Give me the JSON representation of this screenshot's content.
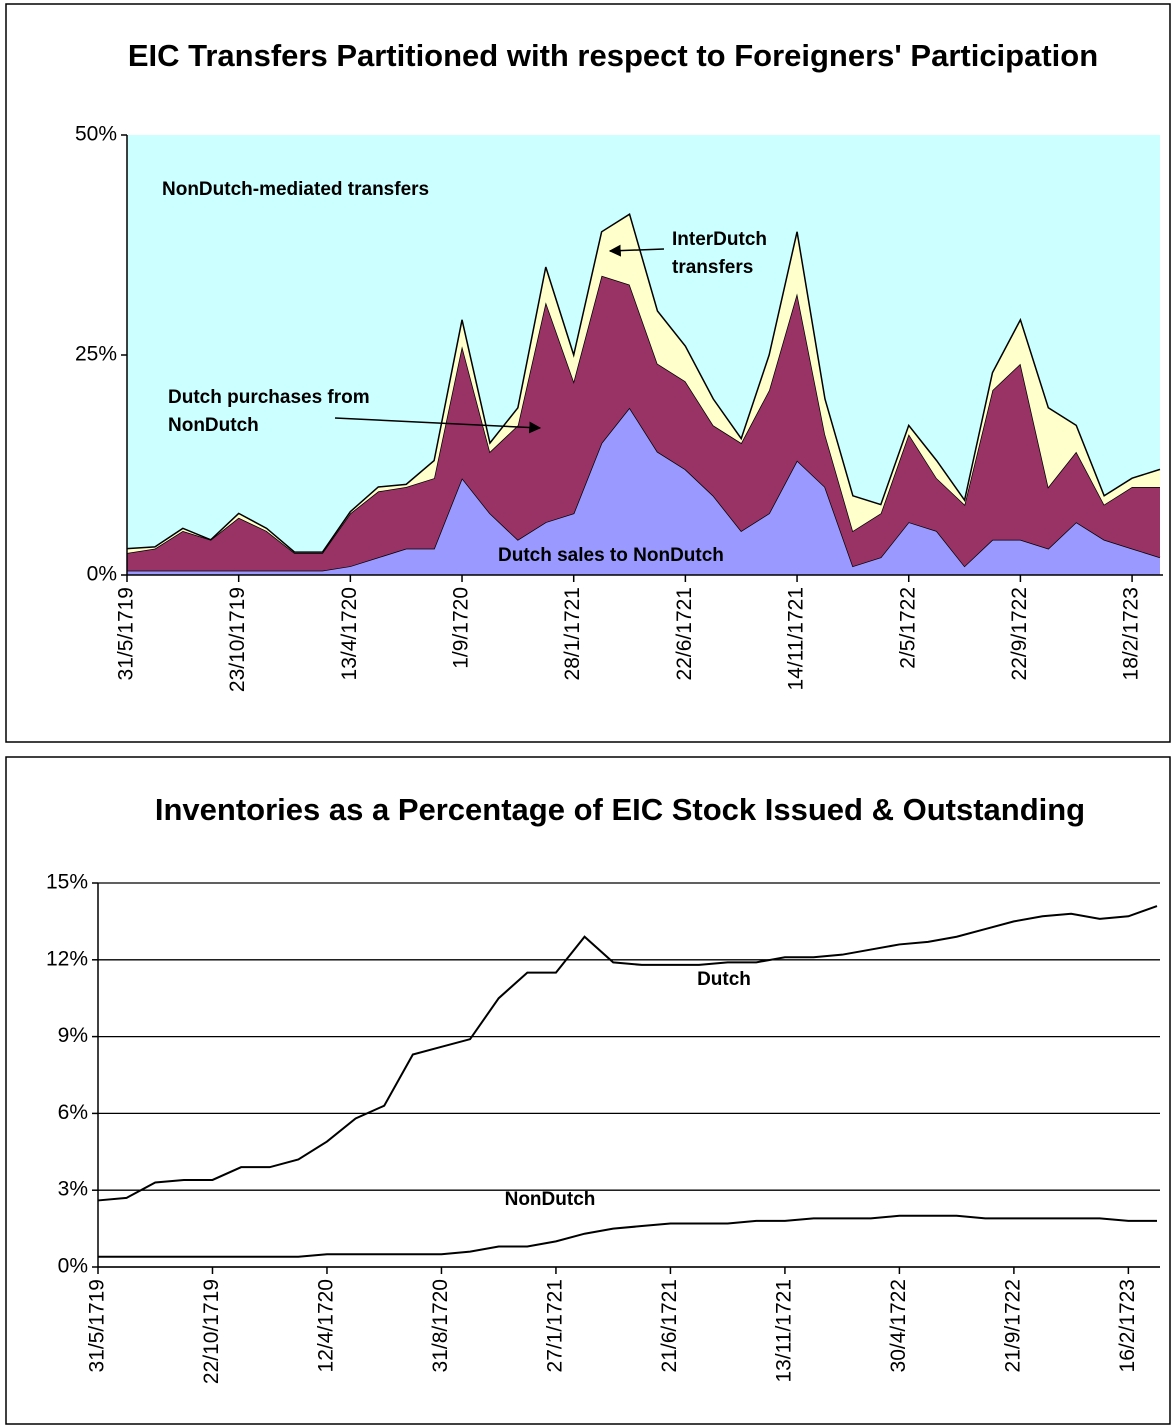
{
  "chart_data": [
    {
      "type": "area",
      "title": "EIC Transfers Partitioned with respect to Foreigners' Participation",
      "categories": [
        "31/5/1719",
        null,
        null,
        null,
        "23/10/1719",
        null,
        null,
        null,
        "13/4/1720",
        null,
        null,
        null,
        "1/9/1720",
        null,
        null,
        null,
        "28/1/1721",
        null,
        null,
        null,
        "22/6/1721",
        null,
        null,
        null,
        "14/11/1721",
        null,
        null,
        null,
        "2/5/1722",
        null,
        null,
        null,
        "22/9/1722",
        null,
        null,
        null,
        "18/2/1723",
        null
      ],
      "ylim": [
        0,
        50
      ],
      "yticks": [
        {
          "value": 0,
          "label": "0%"
        },
        {
          "value": 25,
          "label": "25%"
        },
        {
          "value": 50,
          "label": "50%"
        }
      ],
      "grid": false,
      "background": "#ccffff",
      "background_label": "NonDutch-mediated transfers",
      "series": [
        {
          "label_lines": [
            "Dutch sales to NonDutch"
          ],
          "color": "#9999ff",
          "values": [
            0.5,
            0.5,
            0.5,
            0.5,
            0.5,
            0.5,
            0.5,
            0.5,
            1,
            2,
            3,
            3,
            11,
            7,
            4,
            6,
            7,
            15,
            19,
            14,
            12,
            9,
            5,
            7,
            13,
            10,
            1,
            2,
            6,
            5,
            1,
            4,
            4,
            3,
            6,
            4,
            3,
            2
          ]
        },
        {
          "label_lines": [
            "Dutch purchases from",
            "NonDutch"
          ],
          "color": "#993366",
          "values": [
            2,
            2.5,
            4.5,
            3.5,
            6,
            4.5,
            2,
            2,
            6,
            7.5,
            7,
            8,
            15,
            7,
            13,
            25,
            15,
            19,
            14,
            10,
            10,
            8,
            10,
            14,
            19,
            6,
            4,
            5,
            10,
            6,
            7,
            17,
            20,
            7,
            8,
            4,
            7,
            8
          ]
        },
        {
          "label_lines": [
            "InterDutch",
            "transfers"
          ],
          "color": "#ffffcc",
          "values": [
            0.5,
            0.2,
            0.3,
            0,
            0.5,
            0.3,
            0.1,
            0.1,
            0.2,
            0.5,
            0.3,
            2,
            3,
            1,
            2,
            4,
            3,
            5,
            8,
            6,
            4,
            3,
            0.5,
            4,
            7,
            4,
            4,
            1,
            1,
            2,
            0.5,
            2,
            5,
            9,
            3,
            1,
            1,
            2
          ]
        }
      ]
    },
    {
      "type": "line",
      "title": "Inventories as a Percentage of EIC Stock Issued & Outstanding",
      "categories": [
        "31/5/1719",
        null,
        null,
        null,
        "22/10/1719",
        null,
        null,
        null,
        "12/4/1720",
        null,
        null,
        null,
        "31/8/1720",
        null,
        null,
        null,
        "27/1/1721",
        null,
        null,
        null,
        "21/6/1721",
        null,
        null,
        null,
        "13/11/1721",
        null,
        null,
        null,
        "30/4/1722",
        null,
        null,
        null,
        "21/9/1722",
        null,
        null,
        null,
        "16/2/1723",
        null
      ],
      "ylim": [
        0,
        15
      ],
      "yticks": [
        {
          "value": 0,
          "label": "0%"
        },
        {
          "value": 3,
          "label": "3%"
        },
        {
          "value": 6,
          "label": "6%"
        },
        {
          "value": 9,
          "label": "9%"
        },
        {
          "value": 12,
          "label": "12%"
        },
        {
          "value": 15,
          "label": "15%"
        }
      ],
      "grid": true,
      "series": [
        {
          "name": "Dutch",
          "color": "#000000",
          "values": [
            2.6,
            2.7,
            3.3,
            3.4,
            3.4,
            3.9,
            3.9,
            4.2,
            4.9,
            5.8,
            6.3,
            8.3,
            8.6,
            8.9,
            10.5,
            11.5,
            11.5,
            12.9,
            11.9,
            11.8,
            11.8,
            11.8,
            11.9,
            11.9,
            12.1,
            12.1,
            12.2,
            12.4,
            12.6,
            12.7,
            12.9,
            13.2,
            13.5,
            13.7,
            13.8,
            13.6,
            13.7,
            14.1
          ]
        },
        {
          "name": "NonDutch",
          "color": "#000000",
          "values": [
            0.4,
            0.4,
            0.4,
            0.4,
            0.4,
            0.4,
            0.4,
            0.4,
            0.5,
            0.5,
            0.5,
            0.5,
            0.5,
            0.6,
            0.8,
            0.8,
            1.0,
            1.3,
            1.5,
            1.6,
            1.7,
            1.7,
            1.7,
            1.8,
            1.8,
            1.9,
            1.9,
            1.9,
            2.0,
            2.0,
            2.0,
            1.9,
            1.9,
            1.9,
            1.9,
            1.9,
            1.8,
            1.8
          ]
        }
      ]
    }
  ]
}
